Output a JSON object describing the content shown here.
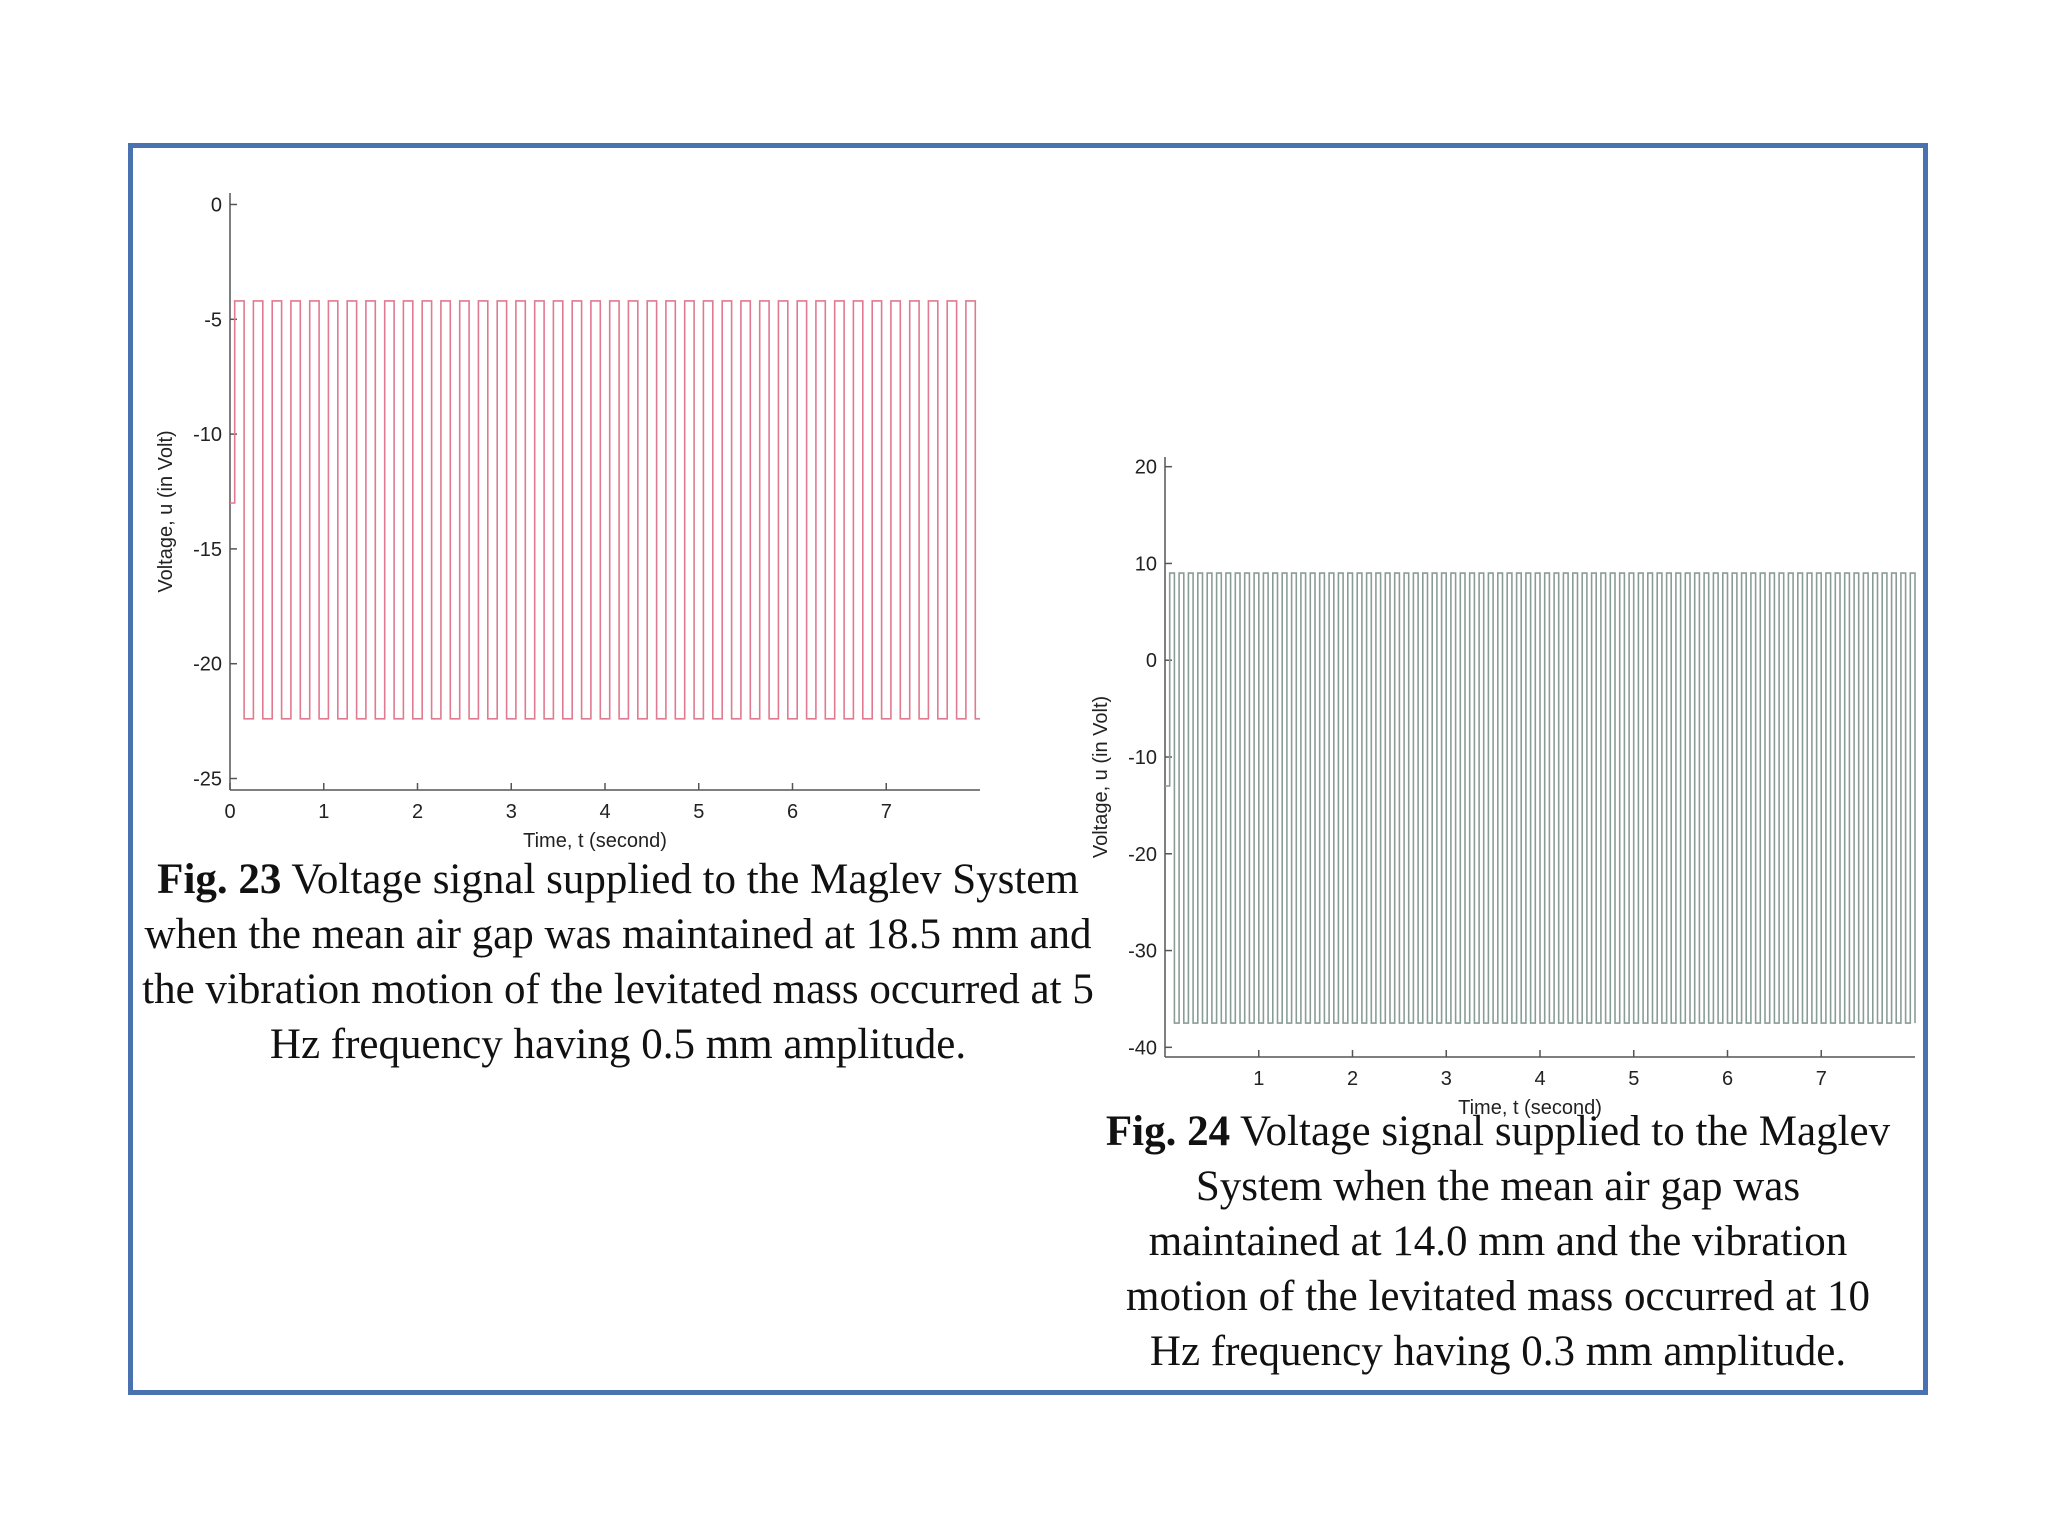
{
  "colors": {
    "frame": "#4a72b0",
    "fig23_line": "#e07a90",
    "fig24_line": "#8a9c96",
    "axis": "#555555"
  },
  "chart_data": [
    {
      "id": "fig23",
      "type": "line",
      "xlabel": "Time, t (second)",
      "ylabel": "Voltage, u (in Volt)",
      "xlim": [
        0,
        8
      ],
      "ylim": [
        -25.5,
        0.5
      ],
      "xticks": [
        0,
        1,
        2,
        3,
        4,
        5,
        6,
        7
      ],
      "yticks": [
        0,
        -5,
        -10,
        -15,
        -20,
        -25
      ],
      "grid": false,
      "signal": {
        "form": "square-wave",
        "frequency_hz": 5,
        "high": -4.2,
        "low": -22.4,
        "start_value": -13
      }
    },
    {
      "id": "fig24",
      "type": "line",
      "xlabel": "Time, t (second)",
      "ylabel": "Voltage, u (in Volt)",
      "xlim": [
        0,
        8
      ],
      "ylim": [
        -41,
        21
      ],
      "xticks": [
        1,
        2,
        3,
        4,
        5,
        6,
        7
      ],
      "yticks": [
        20,
        10,
        0,
        -10,
        -20,
        -30,
        -40
      ],
      "grid": false,
      "signal": {
        "form": "square-wave",
        "frequency_hz": 10,
        "high": 9.0,
        "low": -37.5,
        "start_value": -13
      }
    }
  ],
  "captions": {
    "fig23": {
      "label": "Fig. 23",
      "text": " Voltage signal supplied to the Maglev System when the mean air gap was maintained at 18.5 mm and the vibration motion of the levitated mass occurred at 5 Hz frequency having 0.5 mm amplitude."
    },
    "fig24": {
      "label": "Fig. 24",
      "text": " Voltage signal supplied to the Maglev System when the mean air gap was maintained at 14.0 mm and the vibration motion of the levitated mass occurred at 10 Hz frequency having 0.3 mm amplitude."
    }
  }
}
